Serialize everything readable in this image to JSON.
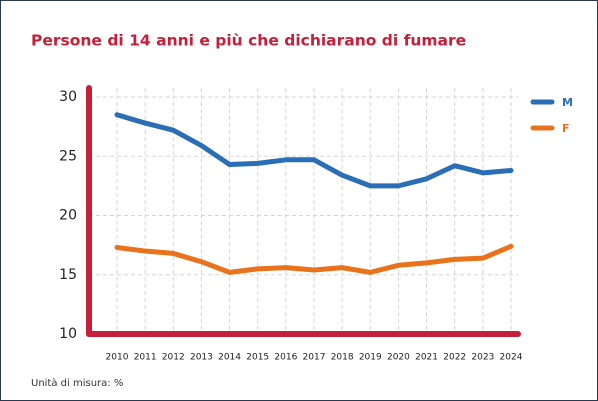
{
  "chart_data": {
    "type": "line",
    "title": "Persone di 14 anni e più che dichiarano di fumare",
    "footnote": "Unità di misura: %",
    "categories": [
      "2010",
      "2011",
      "2012",
      "2013",
      "2014",
      "2015",
      "2016",
      "2017",
      "2018",
      "2019",
      "2020",
      "2021",
      "2022",
      "2023",
      "2024"
    ],
    "series": [
      {
        "name": "M",
        "color": "#2a6eb5",
        "values": [
          28.5,
          27.8,
          27.2,
          25.9,
          24.3,
          24.4,
          24.7,
          24.7,
          23.4,
          22.5,
          22.5,
          23.1,
          24.2,
          23.6,
          23.8
        ]
      },
      {
        "name": "F",
        "color": "#e8731c",
        "values": [
          17.3,
          17.0,
          16.8,
          16.1,
          15.2,
          15.5,
          15.6,
          15.4,
          15.6,
          15.2,
          15.8,
          16.0,
          16.3,
          16.4,
          17.4
        ]
      }
    ],
    "ylim": [
      10,
      30
    ],
    "yticks": [
      10,
      15,
      20,
      25,
      30
    ],
    "grid": true,
    "legend": "top-right"
  }
}
